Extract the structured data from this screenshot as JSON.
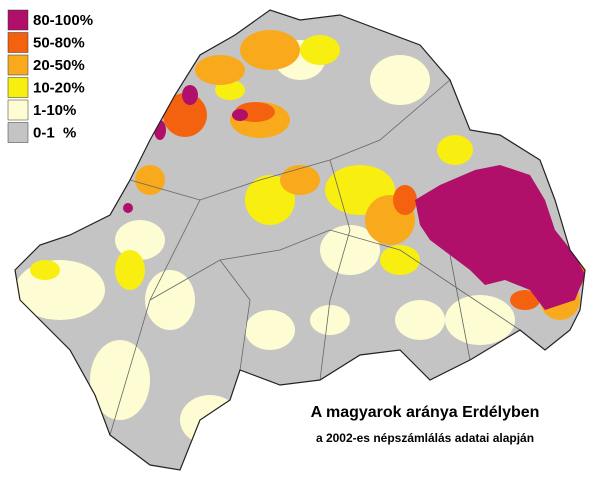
{
  "legend": {
    "items": [
      {
        "label": "80-100%",
        "color": "#b0106a"
      },
      {
        "label": "50-80%",
        "color": "#f5620f"
      },
      {
        "label": "20-50%",
        "color": "#f8aa1c"
      },
      {
        "label": "10-20%",
        "color": "#f8ee10"
      },
      {
        "label": "1-10%",
        "color": "#fdfcd2"
      },
      {
        "label": "0-1  %",
        "color": "#c4c4c4"
      }
    ]
  },
  "caption": {
    "title": "A magyarok aránya Erdélyben",
    "subtitle": "a 2002-es népszámlálás adatai alapján"
  }
}
